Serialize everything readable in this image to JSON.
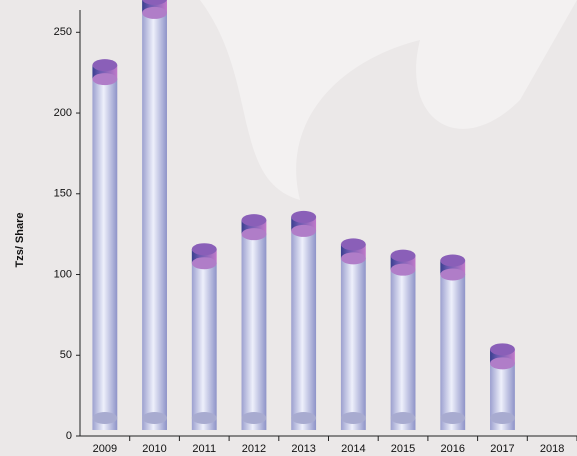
{
  "chart_data": {
    "type": "bar",
    "y_label": "Tzs/ Share",
    "categories": [
      "2009",
      "2010",
      "2011",
      "2012",
      "2013",
      "2014",
      "2015",
      "2016",
      "2017",
      "2018"
    ],
    "values": [
      221,
      262,
      107,
      125,
      127,
      110,
      103,
      100,
      45,
      null
    ],
    "color": "#b8bde8",
    "cap_color": "#8a5fb8",
    "ylim": [
      0,
      270
    ],
    "yticks": [
      0,
      50,
      100,
      150,
      200,
      250
    ]
  }
}
